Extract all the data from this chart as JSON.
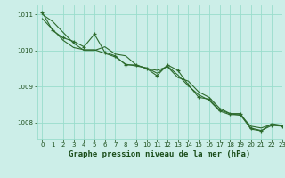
{
  "title": "Graphe pression niveau de la mer (hPa)",
  "bg_color": "#cceee8",
  "grid_color": "#99ddcc",
  "line_color": "#2d6b2d",
  "marker_color": "#2d6b2d",
  "xlim": [
    -0.5,
    23
  ],
  "ylim": [
    1007.55,
    1011.25
  ],
  "yticks": [
    1008,
    1009,
    1010,
    1011
  ],
  "xticks": [
    0,
    1,
    2,
    3,
    4,
    5,
    6,
    7,
    8,
    9,
    10,
    11,
    12,
    13,
    14,
    15,
    16,
    17,
    18,
    19,
    20,
    21,
    22,
    23
  ],
  "series": [
    [
      1011.0,
      1010.8,
      1010.5,
      1010.2,
      1010.0,
      1010.0,
      1010.1,
      1009.9,
      1009.85,
      1009.6,
      1009.5,
      1009.45,
      1009.55,
      1009.25,
      1009.15,
      1008.85,
      1008.7,
      1008.4,
      1008.25,
      1008.2,
      1007.9,
      1007.85,
      1007.95,
      1007.9
    ],
    [
      1011.05,
      1010.55,
      1010.35,
      1010.25,
      1010.1,
      1010.45,
      1009.95,
      1009.85,
      1009.6,
      1009.6,
      1009.5,
      1009.3,
      1009.6,
      1009.45,
      1009.05,
      1008.7,
      1008.65,
      1008.35,
      1008.25,
      1008.25,
      1007.85,
      1007.78,
      1007.92,
      1007.9
    ],
    [
      1010.88,
      1010.58,
      1010.28,
      1010.08,
      1010.02,
      1010.02,
      1009.92,
      1009.82,
      1009.62,
      1009.57,
      1009.52,
      1009.37,
      1009.57,
      1009.32,
      1009.02,
      1008.77,
      1008.62,
      1008.32,
      1008.22,
      1008.22,
      1007.82,
      1007.77,
      1007.97,
      1007.92
    ]
  ],
  "font_color": "#1a4d1a",
  "title_fontsize": 6.5,
  "tick_fontsize": 5.0
}
